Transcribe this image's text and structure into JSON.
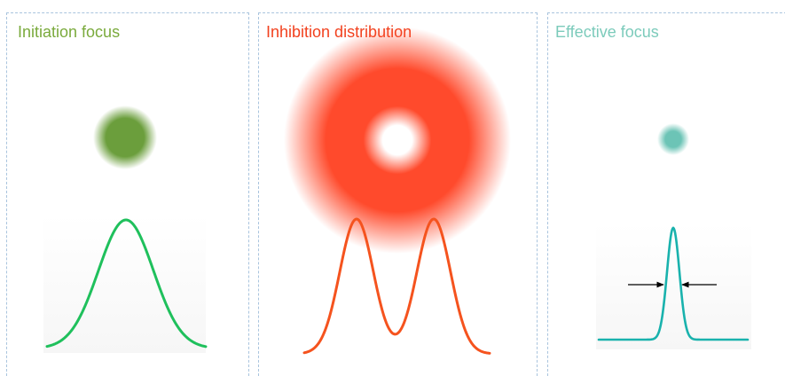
{
  "panels": [
    {
      "title": "Initiation focus",
      "title_color": "#7aaa3c",
      "blob_color": "#6b9e3c",
      "curve_color": "#1fc05c",
      "curve": "single-gaussian"
    },
    {
      "title": "Inhibition distribution",
      "title_color": "#f2411e",
      "blob_color": "#ff4a2c",
      "curve_color": "#f5531e",
      "curve": "double-gaussian"
    },
    {
      "title": "Effective focus",
      "title_color": "#7ccbbb",
      "blob_color": "#6cc4b6",
      "curve_color": "#19b2ad",
      "curve": "narrow-gaussian"
    }
  ],
  "colors": {
    "frame_border": "#a9c4de",
    "plot_background": "#f6f6f6",
    "arrow": "#000000"
  }
}
